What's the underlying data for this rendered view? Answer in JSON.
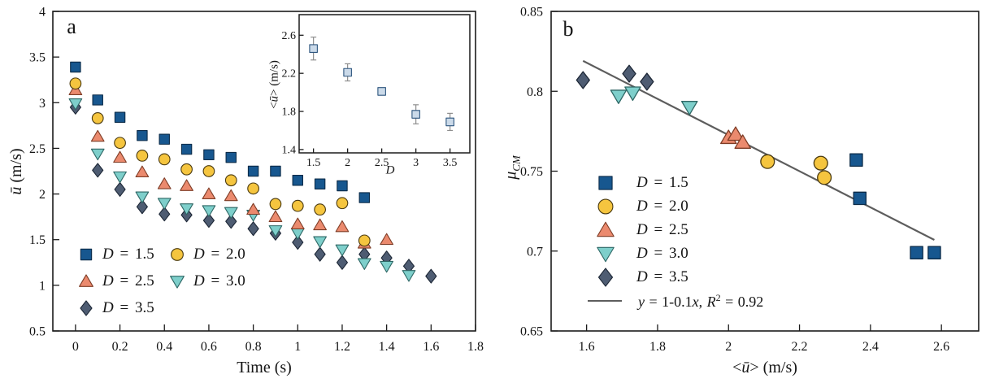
{
  "figure": {
    "panel_a": {
      "label": "a",
      "xlabel": "Time (s)",
      "ylabel": {
        "var": "ū",
        "rest": " (m/s)"
      },
      "legend": {
        "items": [
          {
            "var": "D",
            "rest": " = 1.5"
          },
          {
            "var": "D",
            "rest": " = 2.0"
          },
          {
            "var": "D",
            "rest": " = 2.5"
          },
          {
            "var": "D",
            "rest": " = 3.0"
          },
          {
            "var": "D",
            "rest": " = 3.5"
          }
        ]
      }
    },
    "inset": {
      "xlabel": "D",
      "ylabel": {
        "pre": "<",
        "var": "ū",
        "post": "> (m/s)"
      }
    },
    "panel_b": {
      "label": "b",
      "xlabel": {
        "pre": "<",
        "var": "ū",
        "post": "> (m/s)"
      },
      "ylabel": {
        "mu": "μ",
        "sub": "CM"
      },
      "legend": {
        "items": [
          {
            "var": "D",
            "rest": " = 1.5"
          },
          {
            "var": "D",
            "rest": " = 2.0"
          },
          {
            "var": "D",
            "rest": " = 2.5"
          },
          {
            "var": "D",
            "rest": " = 3.0"
          },
          {
            "var": "D",
            "rest": " = 3.5"
          }
        ],
        "fit": {
          "v1": "y",
          "m1": " = 1-0.1",
          "v2": "x",
          "m2": ", ",
          "v3": "R",
          "sup": "2",
          "m3": " = 0.92"
        }
      }
    }
  },
  "colors": {
    "ink": "#1b1b1b",
    "text": "#141414",
    "fit_line": "#5D5D5D",
    "inset_fill": "#CBDAE9",
    "inset_edge": "#2E567F",
    "error_bar": "#8E8E8E"
  },
  "chart_data": [
    {
      "type": "scatter",
      "title": "a",
      "xlabel": "Time (s)",
      "ylabel": "ū (m/s)",
      "xlim": [
        -0.102,
        1.8
      ],
      "ylim": [
        0.5,
        4
      ],
      "grid": false,
      "legend_position": "lower-left",
      "xticks": [
        0,
        0.2,
        0.4,
        0.6,
        0.8,
        1,
        1.2,
        1.4,
        1.6,
        1.8
      ],
      "xtick_labels": [
        "0",
        "0.2",
        "0.4",
        "0.6",
        "0.8",
        "1",
        "1.2",
        "1.4",
        "1.6",
        "1.8"
      ],
      "yticks": [
        4,
        3.5,
        3,
        2.5,
        2,
        1.5,
        1,
        0.5
      ],
      "ytick_labels": [
        "4",
        "3.5",
        "3",
        "2.5",
        "2",
        "1.5",
        "1",
        "0.5"
      ],
      "series": [
        {
          "name": "D = 1.5",
          "marker": "square",
          "color": "#17578F",
          "edge": "#0D2C49",
          "x": [
            0,
            0.1,
            0.2,
            0.3,
            0.4,
            0.5,
            0.6,
            0.7,
            0.8,
            0.9,
            1.0,
            1.1,
            1.2,
            1.3
          ],
          "y": [
            3.39,
            3.03,
            2.84,
            2.64,
            2.6,
            2.49,
            2.43,
            2.4,
            2.25,
            2.25,
            2.15,
            2.11,
            2.09,
            1.96
          ]
        },
        {
          "name": "D = 2.0",
          "marker": "circle",
          "color": "#F5C53F",
          "edge": "#4A3A10",
          "x": [
            0,
            0.1,
            0.2,
            0.3,
            0.4,
            0.5,
            0.6,
            0.7,
            0.8,
            0.9,
            1.0,
            1.1,
            1.2,
            1.3
          ],
          "y": [
            3.21,
            2.83,
            2.56,
            2.42,
            2.38,
            2.27,
            2.25,
            2.15,
            2.06,
            1.89,
            1.87,
            1.83,
            1.9,
            1.49
          ]
        },
        {
          "name": "D = 2.5",
          "marker": "triangle-up",
          "color": "#EB8A6E",
          "edge": "#7E3C26",
          "x": [
            0,
            0.1,
            0.2,
            0.3,
            0.4,
            0.5,
            0.6,
            0.7,
            0.8,
            0.9,
            1.0,
            1.1,
            1.2,
            1.3,
            1.4
          ],
          "y": [
            3.14,
            2.63,
            2.4,
            2.24,
            2.11,
            2.09,
            2.0,
            1.98,
            1.83,
            1.75,
            1.67,
            1.66,
            1.64,
            1.46,
            1.5
          ]
        },
        {
          "name": "D = 3.0",
          "marker": "triangle-down",
          "color": "#7ECFCB",
          "edge": "#2E6765",
          "x": [
            0,
            0.1,
            0.2,
            0.3,
            0.4,
            0.5,
            0.6,
            0.7,
            0.8,
            0.9,
            1.0,
            1.1,
            1.2,
            1.3,
            1.4,
            1.5
          ],
          "y": [
            2.99,
            2.44,
            2.19,
            1.97,
            1.9,
            1.84,
            1.82,
            1.8,
            1.77,
            1.6,
            1.57,
            1.48,
            1.39,
            1.24,
            1.21,
            1.11
          ]
        },
        {
          "name": "D = 3.5",
          "marker": "diamond",
          "color": "#4E5C72",
          "edge": "#1D2736",
          "x": [
            0,
            0.1,
            0.2,
            0.3,
            0.4,
            0.5,
            0.6,
            0.7,
            0.8,
            0.9,
            1.0,
            1.1,
            1.2,
            1.3,
            1.4,
            1.5,
            1.6
          ],
          "y": [
            2.95,
            2.26,
            2.05,
            1.86,
            1.78,
            1.77,
            1.71,
            1.7,
            1.62,
            1.57,
            1.47,
            1.34,
            1.25,
            1.34,
            1.3,
            1.21,
            1.1
          ]
        }
      ]
    },
    {
      "type": "errorbar",
      "title": "panel-a inset",
      "xlabel": "D",
      "ylabel": "<ū> (m/s)",
      "xlim": [
        1.29,
        3.79
      ],
      "ylim": [
        1.365,
        2.816
      ],
      "grid": false,
      "xticks": [
        1.5,
        2,
        2.5,
        3,
        3.5
      ],
      "xtick_labels": [
        "1.5",
        "2",
        "2.5",
        "3",
        "3.5"
      ],
      "yticks": [
        2.6,
        2.2,
        1.8,
        1.4
      ],
      "ytick_labels": [
        "2.6",
        "2.2",
        "1.8",
        "1.4"
      ],
      "x": [
        1.5,
        2,
        2.5,
        3,
        3.5
      ],
      "y": [
        2.46,
        2.21,
        2.01,
        1.77,
        1.69
      ],
      "yerr": [
        0.12,
        0.09,
        0.03,
        0.1,
        0.09
      ],
      "marker": "square",
      "color": "#CBDAE9",
      "edge": "#2E567F",
      "ecolor": "#8E8E8E"
    },
    {
      "type": "scatter",
      "title": "b",
      "xlabel": "<ū> (m/s)",
      "ylabel": "μ_CM",
      "xlim": [
        1.5,
        2.705
      ],
      "ylim": [
        0.65,
        0.85
      ],
      "grid": false,
      "legend_position": "lower-left",
      "xticks": [
        1.6,
        1.8,
        2,
        2.2,
        2.4,
        2.6
      ],
      "xtick_labels": [
        "1.6",
        "1.8",
        "2",
        "2.2",
        "2.4",
        "2.6"
      ],
      "yticks": [
        0.85,
        0.8,
        0.75,
        0.7,
        0.65
      ],
      "ytick_labels": [
        "0.85",
        "0.8",
        "0.75",
        "0.7",
        "0.65"
      ],
      "series": [
        {
          "name": "D = 1.5",
          "marker": "square",
          "color": "#17578F",
          "edge": "#0D2C49",
          "x": [
            2.36,
            2.37,
            2.53,
            2.58
          ],
          "y": [
            0.757,
            0.733,
            0.699,
            0.699
          ]
        },
        {
          "name": "D = 2.0",
          "marker": "circle",
          "color": "#F5C53F",
          "edge": "#4A3A10",
          "x": [
            2.11,
            2.26,
            2.27
          ],
          "y": [
            0.756,
            0.755,
            0.746
          ]
        },
        {
          "name": "D = 2.5",
          "marker": "triangle-up",
          "color": "#EB8A6E",
          "edge": "#7E3C26",
          "x": [
            2.0,
            2.02,
            2.04
          ],
          "y": [
            0.771,
            0.773,
            0.768
          ]
        },
        {
          "name": "D = 3.0",
          "marker": "triangle-down",
          "color": "#7ECFCB",
          "edge": "#2E6765",
          "x": [
            1.69,
            1.73,
            1.89
          ],
          "y": [
            0.797,
            0.799,
            0.79
          ]
        },
        {
          "name": "D = 3.5",
          "marker": "diamond",
          "color": "#4E5C72",
          "edge": "#1D2736",
          "x": [
            1.59,
            1.72,
            1.77
          ],
          "y": [
            0.807,
            0.811,
            0.806
          ]
        }
      ],
      "fit_line": {
        "label": "y = 1-0.1x, R² = 0.92",
        "slope": -0.1,
        "intercept": 1,
        "r_squared": 0.92,
        "x": [
          1.59,
          2.58
        ],
        "y": [
          0.819,
          0.707
        ],
        "color": "#5D5D5D"
      }
    }
  ]
}
